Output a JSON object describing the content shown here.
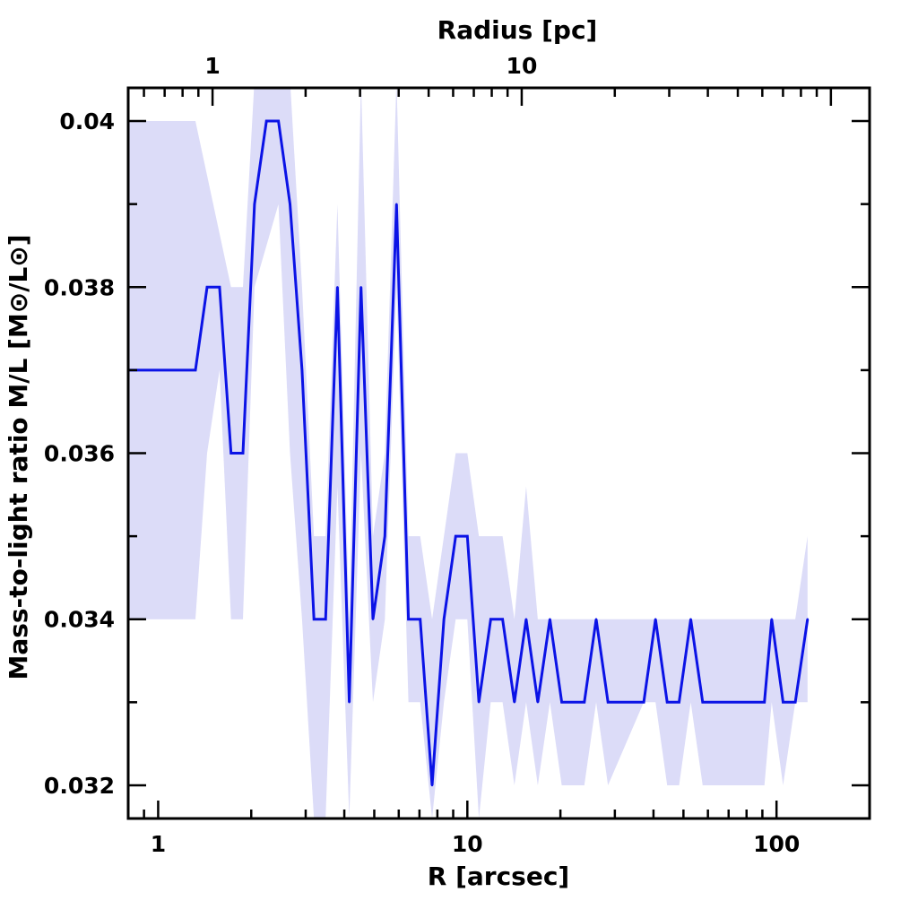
{
  "chart_data": {
    "type": "line",
    "xlabel": "R [arcsec]",
    "top_xlabel": "Radius [pc]",
    "ylabel": "Mass-to-light ratio M/L [M⊙/L⊙]",
    "x_scale": "log",
    "xlim": [
      0.8,
      200
    ],
    "ylim": [
      0.0316,
      0.0404
    ],
    "x_ticks": [
      1,
      10,
      100
    ],
    "x_tick_labels": [
      "1",
      "10",
      "100"
    ],
    "top_x_ticks": [
      1,
      10
    ],
    "top_x_tick_labels": [
      "1",
      "10"
    ],
    "y_ticks": [
      0.032,
      0.034,
      0.036,
      0.038,
      0.04
    ],
    "y_tick_labels": [
      "0.032",
      "0.034",
      "0.036",
      "0.038",
      "0.04"
    ],
    "line_color": "#0b13e6",
    "band_color": "#dcdcf8",
    "series": [
      {
        "values": [
          [
            0.8,
            0.037
          ],
          [
            1.32,
            0.037
          ],
          [
            1.44,
            0.038
          ],
          [
            1.58,
            0.038
          ],
          [
            1.72,
            0.036
          ],
          [
            1.88,
            0.036
          ],
          [
            2.05,
            0.039
          ],
          [
            2.24,
            0.04
          ],
          [
            2.45,
            0.04
          ],
          [
            2.67,
            0.039
          ],
          [
            2.92,
            0.037
          ],
          [
            3.19,
            0.034
          ],
          [
            3.48,
            0.034
          ],
          [
            3.8,
            0.038
          ],
          [
            4.15,
            0.033
          ],
          [
            4.53,
            0.038
          ],
          [
            4.95,
            0.034
          ],
          [
            5.41,
            0.035
          ],
          [
            5.9,
            0.039
          ],
          [
            6.45,
            0.034
          ],
          [
            7.04,
            0.034
          ],
          [
            7.69,
            0.032
          ],
          [
            8.4,
            0.034
          ],
          [
            9.17,
            0.035
          ],
          [
            10.0,
            0.035
          ],
          [
            10.9,
            0.033
          ],
          [
            11.9,
            0.034
          ],
          [
            13.0,
            0.034
          ],
          [
            14.2,
            0.033
          ],
          [
            15.5,
            0.034
          ],
          [
            16.9,
            0.033
          ],
          [
            18.5,
            0.034
          ],
          [
            20.2,
            0.033
          ],
          [
            23.9,
            0.033
          ],
          [
            26.1,
            0.034
          ],
          [
            28.5,
            0.033
          ],
          [
            37.2,
            0.033
          ],
          [
            40.6,
            0.034
          ],
          [
            44.3,
            0.033
          ],
          [
            48.4,
            0.033
          ],
          [
            52.8,
            0.034
          ],
          [
            57.7,
            0.033
          ],
          [
            91.4,
            0.033
          ],
          [
            96.5,
            0.034
          ],
          [
            105.0,
            0.033
          ],
          [
            115.0,
            0.033
          ],
          [
            126.0,
            0.034
          ]
        ]
      }
    ],
    "band": {
      "upper": [
        [
          0.8,
          0.04
        ],
        [
          1.32,
          0.04
        ],
        [
          1.72,
          0.038
        ],
        [
          1.88,
          0.038
        ],
        [
          2.05,
          0.0405
        ],
        [
          2.67,
          0.0405
        ],
        [
          2.92,
          0.038
        ],
        [
          3.19,
          0.035
        ],
        [
          3.48,
          0.035
        ],
        [
          3.8,
          0.039
        ],
        [
          4.15,
          0.034
        ],
        [
          4.53,
          0.0405
        ],
        [
          4.95,
          0.035
        ],
        [
          5.41,
          0.036
        ],
        [
          5.9,
          0.0405
        ],
        [
          6.45,
          0.035
        ],
        [
          7.04,
          0.035
        ],
        [
          7.69,
          0.034
        ],
        [
          8.4,
          0.035
        ],
        [
          9.17,
          0.036
        ],
        [
          10.0,
          0.036
        ],
        [
          10.9,
          0.035
        ],
        [
          13.0,
          0.035
        ],
        [
          14.2,
          0.034
        ],
        [
          15.5,
          0.0356
        ],
        [
          16.9,
          0.034
        ],
        [
          18.5,
          0.034
        ],
        [
          40.6,
          0.034
        ],
        [
          44.3,
          0.034
        ],
        [
          52.8,
          0.034
        ],
        [
          57.7,
          0.034
        ],
        [
          91.4,
          0.034
        ],
        [
          105.0,
          0.034
        ],
        [
          115.0,
          0.034
        ],
        [
          126.0,
          0.035
        ]
      ],
      "lower": [
        [
          0.8,
          0.034
        ],
        [
          1.32,
          0.034
        ],
        [
          1.44,
          0.036
        ],
        [
          1.58,
          0.037
        ],
        [
          1.72,
          0.034
        ],
        [
          1.88,
          0.034
        ],
        [
          2.05,
          0.038
        ],
        [
          2.45,
          0.039
        ],
        [
          2.67,
          0.036
        ],
        [
          2.92,
          0.034
        ],
        [
          3.19,
          0.0316
        ],
        [
          3.48,
          0.0316
        ],
        [
          3.8,
          0.0356
        ],
        [
          4.15,
          0.0316
        ],
        [
          4.53,
          0.036
        ],
        [
          4.95,
          0.033
        ],
        [
          5.41,
          0.034
        ],
        [
          5.9,
          0.038
        ],
        [
          6.45,
          0.033
        ],
        [
          7.04,
          0.033
        ],
        [
          7.69,
          0.0316
        ],
        [
          8.4,
          0.033
        ],
        [
          9.17,
          0.034
        ],
        [
          10.0,
          0.034
        ],
        [
          10.9,
          0.0316
        ],
        [
          11.9,
          0.033
        ],
        [
          13.0,
          0.033
        ],
        [
          14.2,
          0.032
        ],
        [
          15.5,
          0.033
        ],
        [
          16.9,
          0.032
        ],
        [
          18.5,
          0.033
        ],
        [
          20.2,
          0.032
        ],
        [
          23.9,
          0.032
        ],
        [
          26.1,
          0.033
        ],
        [
          28.5,
          0.032
        ],
        [
          37.2,
          0.033
        ],
        [
          40.6,
          0.033
        ],
        [
          44.3,
          0.032
        ],
        [
          48.4,
          0.032
        ],
        [
          52.8,
          0.033
        ],
        [
          57.7,
          0.032
        ],
        [
          64.0,
          0.032
        ],
        [
          91.4,
          0.032
        ],
        [
          96.5,
          0.033
        ],
        [
          105.0,
          0.032
        ],
        [
          115.0,
          0.033
        ],
        [
          126.0,
          0.033
        ]
      ]
    }
  }
}
